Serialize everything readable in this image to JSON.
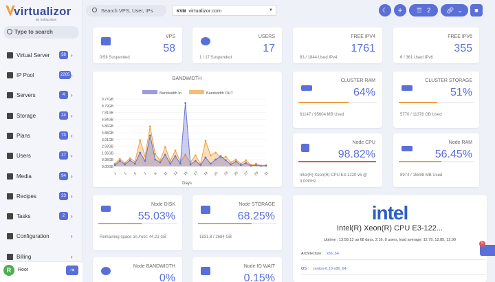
{
  "brand": {
    "name": "virtualizor",
    "sub": "By Softaculous"
  },
  "sidebar": {
    "search_placeholder": "Type to search",
    "items": [
      {
        "label": "Virtual Server",
        "badge": "58",
        "icon": "server-icon"
      },
      {
        "label": "IP Pool",
        "badge": "2205",
        "icon": "ip-icon"
      },
      {
        "label": "Servers",
        "badge": "4",
        "icon": "servers-icon"
      },
      {
        "label": "Storage",
        "badge": "24",
        "icon": "storage-icon"
      },
      {
        "label": "Plans",
        "badge": "73",
        "icon": "plans-icon"
      },
      {
        "label": "Users",
        "badge": "17",
        "icon": "users-icon"
      },
      {
        "label": "Media",
        "badge": "94",
        "icon": "media-icon"
      },
      {
        "label": "Recipes",
        "badge": "23",
        "icon": "recipes-icon"
      },
      {
        "label": "Tasks",
        "badge": "2",
        "icon": "tasks-icon"
      },
      {
        "label": "Configuration",
        "badge": "",
        "icon": "wrench-icon"
      },
      {
        "label": "Billing",
        "badge": "",
        "icon": "billing-icon"
      }
    ],
    "user": {
      "initial": "R",
      "name": "Root"
    }
  },
  "topbar": {
    "search_placeholder": "Search VPS, User, IPs",
    "kvm_tag": "KVM",
    "kvm_value": "virtualizor.com",
    "tasks_count": "2"
  },
  "stats": {
    "vps": {
      "title": "VPS",
      "value": "58",
      "sub": "0/58 Suspended"
    },
    "users": {
      "title": "USERS",
      "value": "17",
      "sub": "1 / 17 Suspended"
    },
    "ipv4": {
      "title": "FREE IPV4",
      "value": "1761",
      "sub": "83 / 1844 Used IPv4"
    },
    "ipv6": {
      "title": "FREE IPV6",
      "value": "355",
      "sub": "6 / 361 Used IPv6"
    },
    "cluster_ram": {
      "title": "CLUSTER RAM",
      "value": "64%",
      "sub": "61147 / 95604 MB Used"
    },
    "cluster_storage": {
      "title": "CLUSTER STORAGE",
      "value": "51%",
      "sub": "5770 / 11376 GB Used"
    },
    "node_cpu": {
      "title": "Node CPU",
      "value": "98.82%",
      "sub": "Intel(R) Xeon(R) CPU E3-1220 v6 @ 3.00GHz"
    },
    "node_ram": {
      "title": "Node RAM",
      "value": "56.45%",
      "sub": "8974 / 15898 MB Used"
    },
    "node_disk": {
      "title": "Node DISK",
      "value": "55.03%",
      "sub": "Remaining space on /root: 44.21 GB"
    },
    "node_storage": {
      "title": "Node STORAGE",
      "value": "68.25%",
      "sub": "1831.8 / 2684 GB"
    },
    "node_bandwidth": {
      "title": "Node BANDWIDTH",
      "value": "0%"
    },
    "node_io": {
      "title": "Node IO WAIT",
      "value": "0.15%"
    }
  },
  "cpu_info": {
    "logo": "intel",
    "name": "Intel(R) Xeon(R) CPU E3-122...",
    "uptime": "Uptime : 13:58:13 up 68 days, 2:16, 0 users, load average: 12.79, 12.85, 12.90",
    "arch_label": "Architecture:",
    "arch_value": "x86_64",
    "os_label": "OS :",
    "os_value": "centos-6.10-x86_64"
  },
  "help_count": "5",
  "chart_data": {
    "type": "area",
    "title": "BANDWIDTH",
    "xlabel": "Days",
    "ylabel": "",
    "x": [
      1,
      2,
      3,
      4,
      5,
      6,
      7,
      8,
      9,
      10,
      11,
      12,
      13,
      14,
      15,
      16,
      17,
      18,
      19,
      20,
      21,
      22,
      23,
      24,
      25,
      26,
      27,
      28,
      29,
      30,
      31
    ],
    "y_ticks": [
      "0.00GB",
      "0.98GB",
      "1.95GB",
      "2.93GB",
      "3.91GB",
      "4.88GB",
      "5.86GB",
      "6.84GB",
      "7.81GB",
      "8.79GB",
      "9.77GB"
    ],
    "ylim": [
      0,
      9.77
    ],
    "series": [
      {
        "name": "Bandwidth In",
        "color": "#6b74cf",
        "values": [
          0.2,
          0.8,
          0.3,
          0.9,
          0.4,
          2.0,
          0.8,
          4.5,
          1.0,
          0.6,
          1.7,
          0.4,
          1.5,
          0.4,
          9.2,
          0.3,
          0.8,
          0.2,
          1.3,
          0.4,
          1.0,
          1.5,
          0.9,
          0.3,
          0.7,
          0.2,
          0.5,
          0.1,
          0.2,
          0.1,
          0.1
        ]
      },
      {
        "name": "Bandwidth OUT",
        "color": "#f0a040",
        "values": [
          0.4,
          1.1,
          0.5,
          1.2,
          0.7,
          3.8,
          1.5,
          5.8,
          1.8,
          0.9,
          2.8,
          0.8,
          2.3,
          0.7,
          1.7,
          0.6,
          1.6,
          0.4,
          3.7,
          1.6,
          2.0,
          1.3,
          1.4,
          0.6,
          1.0,
          0.4,
          0.9,
          0.2,
          0.4,
          0.1,
          0.2
        ]
      }
    ],
    "legend": "top"
  }
}
